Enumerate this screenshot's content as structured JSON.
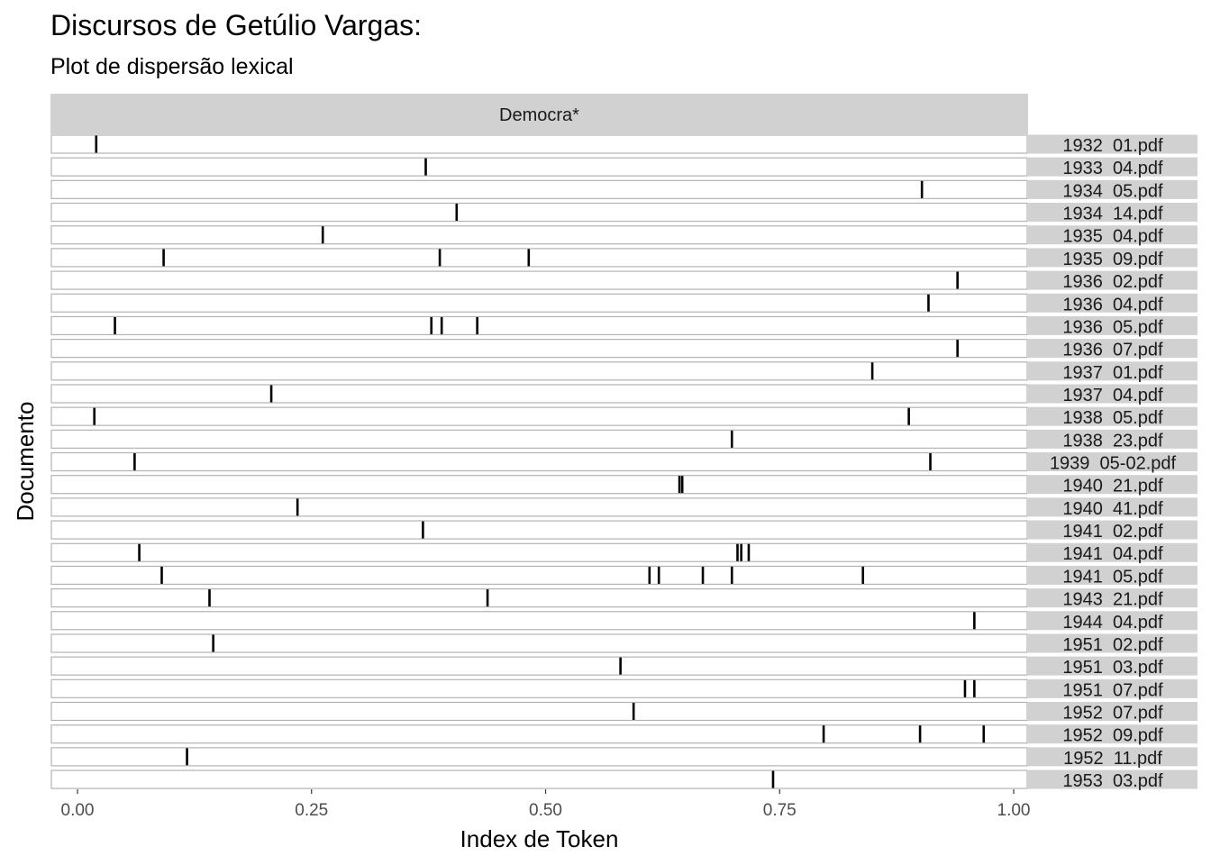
{
  "chart_data": {
    "type": "scatter",
    "title": "Discursos de Getúlio Vargas:",
    "subtitle": "Plot de dispersão lexical",
    "facet_label": "Democra*",
    "xlabel": "Index de Token",
    "ylabel": "Documento",
    "xlim": [
      0,
      1
    ],
    "x_ticks": [
      "0.00",
      "0.25",
      "0.50",
      "0.75",
      "1.00"
    ],
    "x_tick_values": [
      0,
      0.25,
      0.5,
      0.75,
      1.0
    ],
    "grid": false,
    "colors": {
      "strip": "#d1d1d1",
      "panel_border": "#b3b3b3",
      "marks": "#000000"
    },
    "documents": [
      {
        "name": "1932_01.pdf",
        "hits": [
          0.02
        ]
      },
      {
        "name": "1933_04.pdf",
        "hits": [
          0.372
        ]
      },
      {
        "name": "1934_05.pdf",
        "hits": [
          0.902
        ]
      },
      {
        "name": "1934_14.pdf",
        "hits": [
          0.405
        ]
      },
      {
        "name": "1935_04.pdf",
        "hits": [
          0.262
        ]
      },
      {
        "name": "1935_09.pdf",
        "hits": [
          0.092,
          0.387,
          0.482
        ]
      },
      {
        "name": "1936_02.pdf",
        "hits": [
          0.94
        ]
      },
      {
        "name": "1936_04.pdf",
        "hits": [
          0.909
        ]
      },
      {
        "name": "1936_05.pdf",
        "hits": [
          0.04,
          0.378,
          0.389,
          0.427
        ]
      },
      {
        "name": "1936_07.pdf",
        "hits": [
          0.94
        ]
      },
      {
        "name": "1937_01.pdf",
        "hits": [
          0.849
        ]
      },
      {
        "name": "1937_04.pdf",
        "hits": [
          0.207
        ]
      },
      {
        "name": "1938_05.pdf",
        "hits": [
          0.018,
          0.888
        ]
      },
      {
        "name": "1938_23.pdf",
        "hits": [
          0.699
        ]
      },
      {
        "name": "1939_05-02.pdf",
        "hits": [
          0.061,
          0.911
        ]
      },
      {
        "name": "1940_21.pdf",
        "hits": [
          0.643,
          0.646
        ]
      },
      {
        "name": "1940_41.pdf",
        "hits": [
          0.235
        ]
      },
      {
        "name": "1941_02.pdf",
        "hits": [
          0.369
        ]
      },
      {
        "name": "1941_04.pdf",
        "hits": [
          0.066,
          0.705,
          0.709,
          0.717
        ]
      },
      {
        "name": "1941_05.pdf",
        "hits": [
          0.09,
          0.611,
          0.621,
          0.668,
          0.699,
          0.839
        ]
      },
      {
        "name": "1943_21.pdf",
        "hits": [
          0.141,
          0.438
        ]
      },
      {
        "name": "1944_04.pdf",
        "hits": [
          0.958
        ]
      },
      {
        "name": "1951_02.pdf",
        "hits": [
          0.145
        ]
      },
      {
        "name": "1951_03.pdf",
        "hits": [
          0.58
        ]
      },
      {
        "name": "1951_07.pdf",
        "hits": [
          0.948,
          0.958
        ]
      },
      {
        "name": "1952_07.pdf",
        "hits": [
          0.594
        ]
      },
      {
        "name": "1952_09.pdf",
        "hits": [
          0.797,
          0.9,
          0.968
        ]
      },
      {
        "name": "1952_11.pdf",
        "hits": [
          0.117
        ]
      },
      {
        "name": "1953_03.pdf",
        "hits": [
          0.743
        ]
      }
    ]
  }
}
